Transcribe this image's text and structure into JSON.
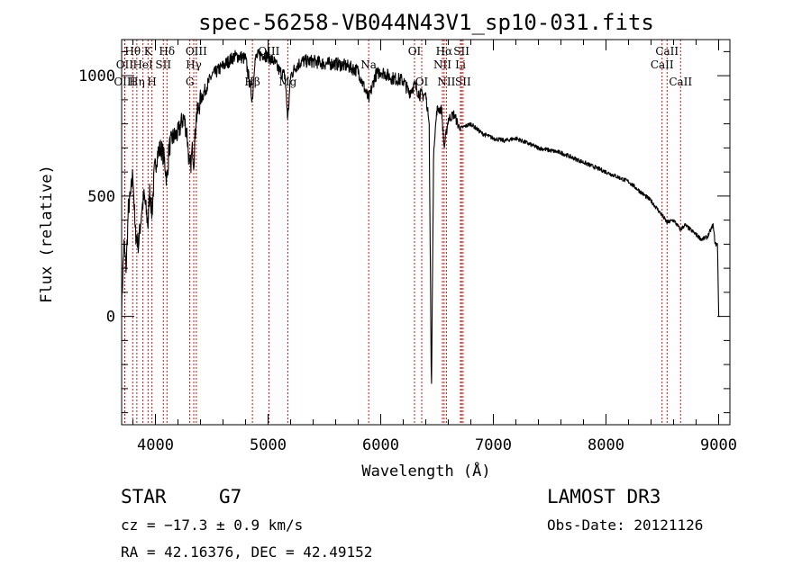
{
  "chart_data": {
    "type": "line",
    "title": "spec-56258-VB044N43V1_sp10-031.fits",
    "xlabel": "Wavelength (Å)",
    "ylabel": "Flux (relative)",
    "xlim": [
      3700,
      9100
    ],
    "ylim": [
      -450,
      1150
    ],
    "xticks": [
      4000,
      5000,
      6000,
      7000,
      8000,
      9000
    ],
    "yticks": [
      0,
      500,
      1000
    ],
    "x": [
      3700,
      3720,
      3740,
      3760,
      3780,
      3800,
      3820,
      3850,
      3880,
      3900,
      3934,
      3950,
      3969,
      3990,
      4020,
      4050,
      4080,
      4102,
      4120,
      4150,
      4200,
      4250,
      4280,
      4305,
      4330,
      4340,
      4360,
      4400,
      4450,
      4500,
      4550,
      4600,
      4650,
      4700,
      4750,
      4800,
      4861,
      4880,
      4900,
      4950,
      5000,
      5050,
      5100,
      5150,
      5175,
      5200,
      5250,
      5300,
      5400,
      5500,
      5600,
      5700,
      5800,
      5893,
      5950,
      6000,
      6100,
      6200,
      6250,
      6300,
      6350,
      6400,
      6430,
      6450,
      6470,
      6500,
      6540,
      6563,
      6600,
      6650,
      6700,
      6750,
      6800,
      6900,
      7000,
      7100,
      7200,
      7300,
      7400,
      7500,
      7600,
      7700,
      7800,
      7900,
      8000,
      8100,
      8200,
      8300,
      8400,
      8498,
      8542,
      8600,
      8662,
      8700,
      8750,
      8800,
      8850,
      8900,
      8950,
      8970,
      8990,
      9000,
      9010
    ],
    "y": [
      50,
      300,
      200,
      450,
      500,
      600,
      350,
      300,
      450,
      500,
      380,
      530,
      420,
      600,
      680,
      700,
      650,
      560,
      700,
      740,
      760,
      830,
      760,
      600,
      700,
      640,
      820,
      900,
      950,
      1000,
      1020,
      1040,
      1060,
      1080,
      1080,
      1070,
      900,
      1060,
      1080,
      1090,
      1080,
      1060,
      1020,
      1000,
      820,
      1000,
      1040,
      1060,
      1060,
      1050,
      1050,
      1040,
      1020,
      900,
      1000,
      1020,
      990,
      980,
      930,
      960,
      920,
      920,
      800,
      -330,
      700,
      860,
      860,
      700,
      820,
      840,
      780,
      790,
      800,
      760,
      740,
      730,
      740,
      720,
      700,
      690,
      680,
      660,
      640,
      620,
      600,
      580,
      560,
      520,
      480,
      420,
      390,
      400,
      360,
      380,
      360,
      340,
      320,
      330,
      380,
      300,
      300,
      0,
      0
    ],
    "spectral_lines": [
      {
        "label": "Hθ",
        "wavelength": 3798,
        "row": 0
      },
      {
        "label": "OII",
        "wavelength": 3727,
        "row": 1
      },
      {
        "label": "OIII",
        "wavelength": 3727,
        "row": 2
      },
      {
        "label": "Hη",
        "wavelength": 3835,
        "row": 2
      },
      {
        "label": "HeI",
        "wavelength": 3889,
        "row": 1
      },
      {
        "label": "K",
        "wavelength": 3934,
        "row": 0
      },
      {
        "label": "H",
        "wavelength": 3969,
        "row": 2
      },
      {
        "label": "SII",
        "wavelength": 4070,
        "row": 1
      },
      {
        "label": "Hδ",
        "wavelength": 4102,
        "row": 0
      },
      {
        "label": "OIII",
        "wavelength": 4363,
        "row": 0
      },
      {
        "label": "Hγ",
        "wavelength": 4340,
        "row": 1
      },
      {
        "label": "G",
        "wavelength": 4305,
        "row": 2
      },
      {
        "label": "Hβ",
        "wavelength": 4861,
        "row": 2
      },
      {
        "label": "OIII",
        "wavelength": 5007,
        "row": 0
      },
      {
        "label": "Mg",
        "wavelength": 5175,
        "row": 2
      },
      {
        "label": "Na",
        "wavelength": 5893,
        "row": 1
      },
      {
        "label": "OI",
        "wavelength": 6300,
        "row": 0
      },
      {
        "label": "OI",
        "wavelength": 6364,
        "row": 2
      },
      {
        "label": "Hα",
        "wavelength": 6563,
        "row": 0
      },
      {
        "label": "NII",
        "wavelength": 6548,
        "row": 1
      },
      {
        "label": "NII",
        "wavelength": 6583,
        "row": 2
      },
      {
        "label": "SII",
        "wavelength": 6717,
        "row": 0
      },
      {
        "label": "Li",
        "wavelength": 6708,
        "row": 1
      },
      {
        "label": "SII",
        "wavelength": 6731,
        "row": 2
      },
      {
        "label": "CaII",
        "wavelength": 8542,
        "row": 0
      },
      {
        "label": "CaII",
        "wavelength": 8498,
        "row": 1
      },
      {
        "label": "CaII",
        "wavelength": 8662,
        "row": 2
      }
    ]
  },
  "info": {
    "object_class": "STAR",
    "subclass": "G7",
    "survey": "LAMOST DR3",
    "redshift": "cz = −17.3 ± 0.9 km/s",
    "obs_date": "Obs-Date: 20121126",
    "coords": "RA =  42.16376, DEC =  42.49152"
  },
  "colors": {
    "line_marker": "#c00000",
    "spectrum": "#000000",
    "axes": "#000000"
  }
}
